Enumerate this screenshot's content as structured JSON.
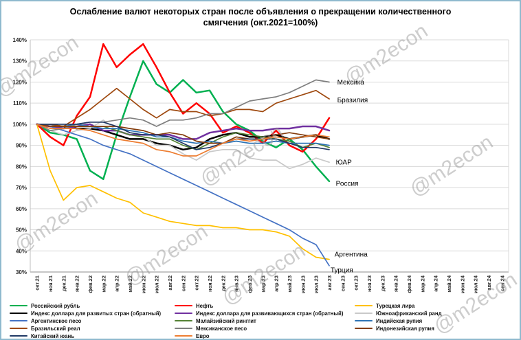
{
  "title": "Ослабление валют некоторых стран после объявления о прекращении количественного смягчения  (окт.2021=100%)",
  "watermark": {
    "text": "@m2econ",
    "color": "#9c9c9c"
  },
  "chart_data": {
    "type": "line",
    "title": "Ослабление валют некоторых стран после объявления о прекращении количественного смягчения (окт.2021=100%)",
    "y_axis": {
      "min": 30,
      "max": 140,
      "step": 10,
      "tick_suffix": "%"
    },
    "x_labels": [
      "окт.21",
      "ноя.21",
      "дек.21",
      "янв.22",
      "фев.22",
      "мар.22",
      "апр.22",
      "май.22",
      "июн.22",
      "июл.22",
      "авг.22",
      "сен.22",
      "окт.22",
      "ноя.22",
      "дек.22",
      "янв.23",
      "фев.23",
      "мар.23",
      "апр.23",
      "май.23",
      "июн.23",
      "июл.23",
      "авг.23",
      "сен.23",
      "окт.23",
      "ноя.23",
      "дек.23",
      "янв.24",
      "фев.24",
      "мар.24",
      "апр.24",
      "май.24",
      "июн.24",
      "июл.24",
      "авг.24",
      "сен.24"
    ],
    "grid": "horizontal",
    "legend_position": "bottom",
    "series": [
      {
        "name": "Российский рубль",
        "color": "#00B050",
        "width": 2.5,
        "values": [
          100,
          96,
          95,
          93,
          78,
          74,
          95,
          113,
          130,
          119,
          115,
          121,
          115,
          116,
          106,
          100,
          97,
          92,
          89,
          93,
          88,
          80,
          73
        ]
      },
      {
        "name": "Нефть",
        "color": "#FF0000",
        "width": 2.5,
        "values": [
          100,
          94,
          90,
          104,
          113,
          138,
          127,
          133,
          138,
          127,
          115,
          105,
          110,
          105,
          96,
          99,
          96,
          91,
          97,
          90,
          87,
          93,
          103
        ]
      },
      {
        "name": "Турецкая лира",
        "color": "#FFC000",
        "width": 1.7,
        "values": [
          100,
          78,
          64,
          70,
          71,
          68,
          65,
          63,
          58,
          56,
          54,
          53,
          52,
          52,
          51,
          51,
          50,
          50,
          49,
          47,
          41,
          37,
          36
        ]
      },
      {
        "name": "Индекс доллара для развитых стран (обратный)",
        "color": "#000000",
        "width": 2.5,
        "values": [
          100,
          99,
          99,
          98,
          98,
          97,
          95,
          93,
          93,
          91,
          90,
          88,
          89,
          93,
          95,
          96,
          94,
          94,
          95,
          93,
          94,
          95,
          93
        ]
      },
      {
        "name": "Индекс доллара для развивающихся стран (обратный)",
        "color": "#7030A0",
        "width": 2.5,
        "values": [
          100,
          99,
          98,
          99,
          100,
          97,
          97,
          95,
          95,
          95,
          95,
          93,
          93,
          96,
          97,
          98,
          97,
          97,
          98,
          98,
          99,
          99,
          97
        ]
      },
      {
        "name": "Южноафриканский ранд",
        "color": "#C9C9C9",
        "width": 1.7,
        "values": [
          100,
          97,
          95,
          97,
          98,
          102,
          97,
          95,
          94,
          90,
          90,
          86,
          83,
          87,
          88,
          88,
          84,
          83,
          83,
          79,
          81,
          84,
          82
        ]
      },
      {
        "name": "Аргентинское песо",
        "color": "#4472C4",
        "width": 1.7,
        "values": [
          100,
          99,
          97,
          95,
          93,
          90,
          88,
          86,
          83,
          80,
          77,
          74,
          71,
          68,
          65,
          62,
          59,
          56,
          53,
          50,
          46,
          43,
          33
        ]
      },
      {
        "name": "Малайзийский ринггит",
        "color": "#548235",
        "width": 1.7,
        "values": [
          100,
          100,
          99,
          99,
          99,
          99,
          97,
          95,
          94,
          93,
          93,
          90,
          88,
          91,
          94,
          96,
          95,
          94,
          93,
          92,
          89,
          91,
          89
        ]
      },
      {
        "name": "Индийская рупия",
        "color": "#2E74B5",
        "width": 1.7,
        "values": [
          100,
          100,
          99,
          100,
          99,
          98,
          98,
          97,
          96,
          94,
          94,
          92,
          91,
          92,
          91,
          92,
          91,
          91,
          92,
          91,
          91,
          91,
          90
        ]
      },
      {
        "name": "Бразильский реал",
        "color": "#9E480E",
        "width": 1.7,
        "values": [
          100,
          100,
          99,
          103,
          107,
          112,
          117,
          112,
          107,
          103,
          107,
          106,
          106,
          104,
          105,
          107,
          107,
          106,
          110,
          112,
          114,
          116,
          112
        ]
      },
      {
        "name": "Мексиканское песо",
        "color": "#7F7F7F",
        "width": 1.7,
        "values": [
          100,
          97,
          98,
          100,
          101,
          101,
          102,
          103,
          102,
          99,
          102,
          102,
          103,
          105,
          105,
          108,
          111,
          112,
          113,
          115,
          118,
          121,
          120
        ]
      },
      {
        "name": "Индонезийская рупия",
        "color": "#843C0C",
        "width": 1.7,
        "values": [
          100,
          99,
          99,
          99,
          99,
          99,
          99,
          98,
          97,
          95,
          96,
          95,
          92,
          91,
          91,
          94,
          93,
          93,
          95,
          96,
          95,
          94,
          93
        ]
      },
      {
        "name": "Китайский юань",
        "color": "#1F3864",
        "width": 1.7,
        "values": [
          100,
          100,
          100,
          100,
          101,
          101,
          99,
          96,
          95,
          95,
          94,
          91,
          88,
          89,
          91,
          93,
          93,
          93,
          93,
          91,
          89,
          89,
          88
        ]
      },
      {
        "name": "Евро",
        "color": "#ED7D31",
        "width": 1.7,
        "values": [
          100,
          98,
          98,
          98,
          97,
          95,
          93,
          92,
          91,
          88,
          87,
          85,
          85,
          88,
          91,
          93,
          92,
          93,
          94,
          93,
          94,
          95,
          94
        ]
      }
    ],
    "legend_columns": [
      [
        0,
        3,
        6,
        9,
        12
      ],
      [
        1,
        4,
        7,
        10,
        13
      ],
      [
        2,
        5,
        8,
        11
      ]
    ],
    "annotations": [
      {
        "text": "Мексика",
        "xi": 22.6,
        "y": 120
      },
      {
        "text": "Бразилия",
        "xi": 22.6,
        "y": 111.5
      },
      {
        "text": "ЮАР",
        "xi": 22.5,
        "y": 82
      },
      {
        "text": "Россия",
        "xi": 22.5,
        "y": 72
      },
      {
        "text": "Аргентина",
        "xi": 22.4,
        "y": 38.5
      },
      {
        "text": "Турция",
        "xi": 22.1,
        "y": 31
      }
    ]
  }
}
